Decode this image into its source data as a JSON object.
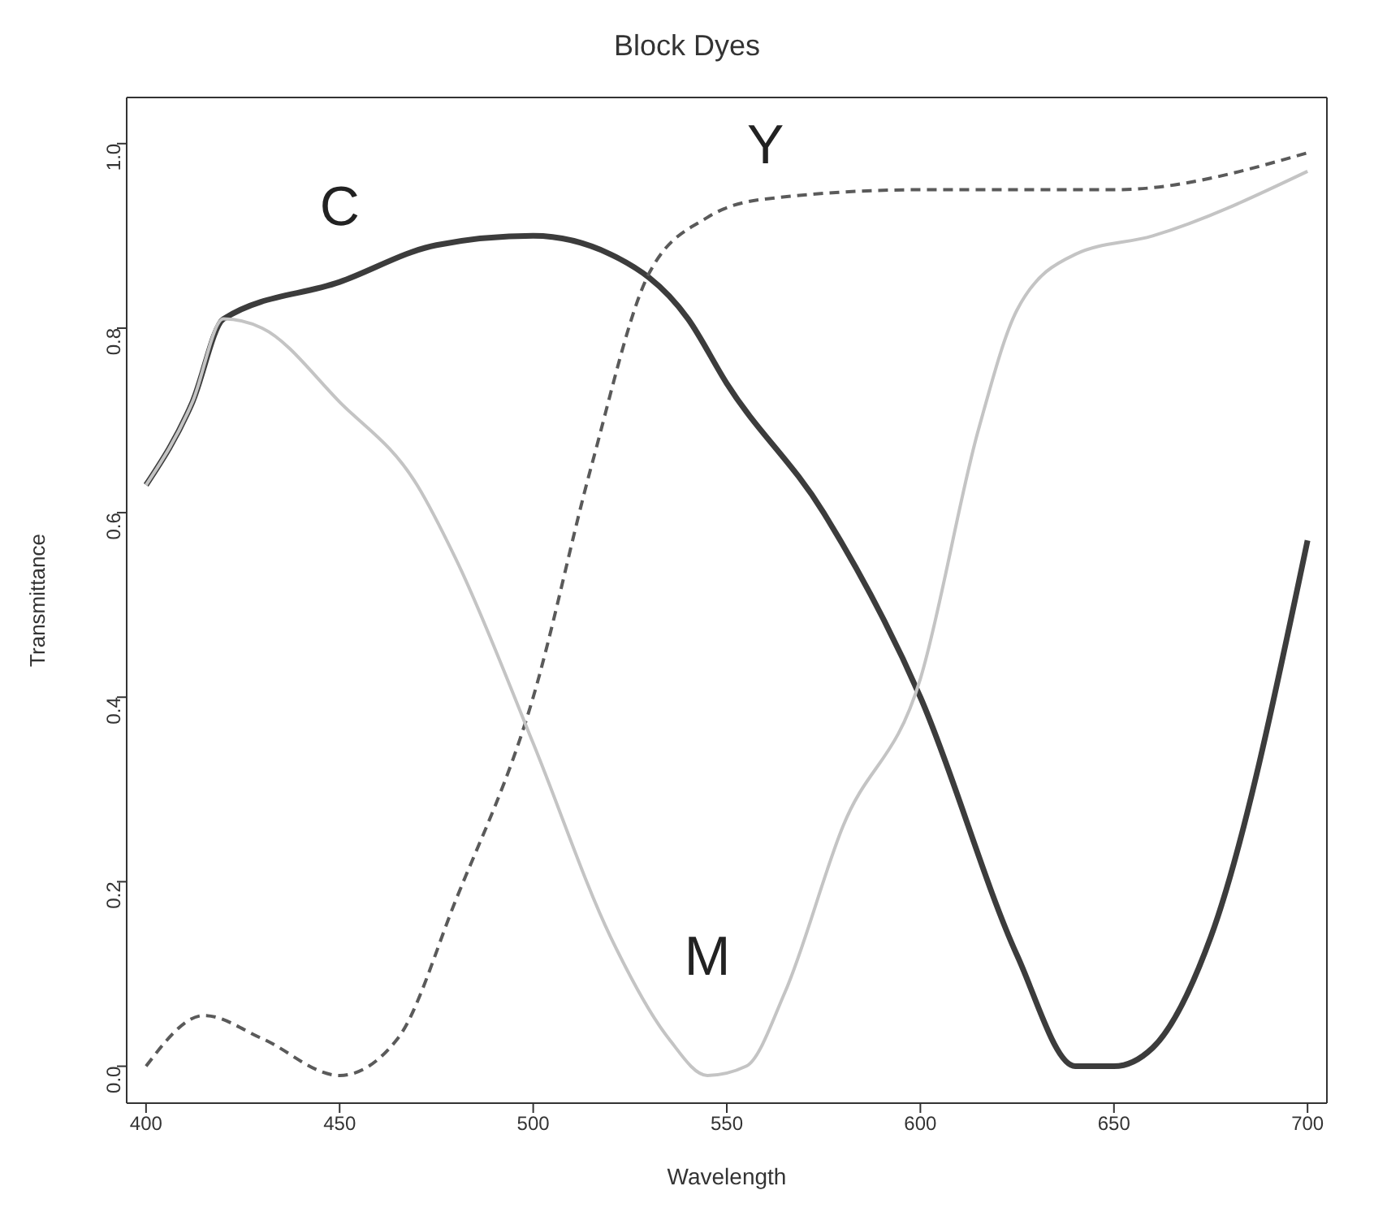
{
  "chart_data": {
    "type": "line",
    "title": "Block Dyes",
    "xlabel": "Wavelength",
    "ylabel": "Transmittance",
    "xlim": [
      395,
      705
    ],
    "xticks": [
      400,
      450,
      500,
      550,
      600,
      650,
      700
    ],
    "ylim": [
      -0.04,
      1.05
    ],
    "yticks": [
      {
        "value": 0,
        "label": "0.0"
      },
      0.2,
      0.4,
      0.6,
      0.8,
      {
        "value": 1,
        "label": "1.0"
      }
    ],
    "grid": false,
    "legend": false,
    "marker": "none",
    "series": [
      {
        "name": "C",
        "color": "#3c3c3c",
        "line_style": "solid",
        "x": [
          400,
          412,
          420,
          450,
          475,
          500,
          520,
          540,
          550,
          575,
          600,
          625,
          640,
          650,
          660,
          675,
          700
        ],
        "values": [
          0.63,
          0.72,
          0.81,
          0.85,
          0.89,
          0.9,
          0.88,
          0.81,
          0.74,
          0.6,
          0.4,
          0.12,
          0.0,
          0.0,
          0.02,
          0.14,
          0.57
        ]
      },
      {
        "name": "Y",
        "color": "#5a5a5a",
        "line_style": "dashed",
        "x": [
          400,
          415,
          430,
          450,
          465,
          480,
          500,
          515,
          530,
          545,
          560,
          600,
          650,
          700
        ],
        "values": [
          0.0,
          0.055,
          0.03,
          -0.01,
          0.03,
          0.18,
          0.4,
          0.65,
          0.86,
          0.92,
          0.94,
          0.95,
          0.95,
          0.99
        ]
      },
      {
        "name": "M",
        "color": "#c4c4c4",
        "line_style": "solid",
        "x": [
          400,
          412,
          420,
          430,
          450,
          470,
          480,
          500,
          520,
          535,
          545,
          555,
          565,
          580,
          600,
          615,
          625,
          640,
          660,
          700
        ],
        "values": [
          0.63,
          0.72,
          0.81,
          0.8,
          0.72,
          0.63,
          0.55,
          0.35,
          0.14,
          0.03,
          -0.01,
          0.0,
          0.08,
          0.26,
          0.42,
          0.69,
          0.82,
          0.88,
          0.9,
          0.97
        ]
      }
    ]
  }
}
